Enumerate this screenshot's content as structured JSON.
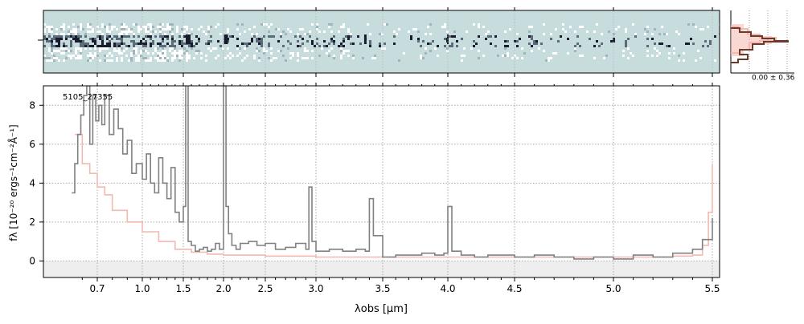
{
  "chart_data": [
    {
      "type": "heatmap",
      "id": "spectrum-2d",
      "description_of_content": "2D spectrum",
      "colormap": [
        "#c7dcdc",
        "#ffffff",
        "#1a1a2e"
      ]
    },
    {
      "type": "line",
      "id": "profile-inset",
      "annotation": "0.00 ± 0.36",
      "colors": {
        "profile": "#6b3a2a",
        "model": "#f4b8b0"
      }
    },
    {
      "type": "line",
      "id": "spectrum-1d",
      "label": "5105_27355",
      "xlabel": "λobs [μm]",
      "ylabel": "fλ [10⁻²⁰ ergs⁻¹cm⁻²Å⁻¹]",
      "ylim": [
        -0.85,
        9.0
      ],
      "yticks": [
        0,
        2,
        4,
        6,
        8
      ],
      "xticks": [
        {
          "label": "0.7",
          "value": 0.7
        },
        {
          "label": "1.0",
          "value": 1.0
        },
        {
          "label": "1.5",
          "value": 1.5
        },
        {
          "label": "2.0",
          "value": 2.0
        },
        {
          "label": "2.5",
          "value": 2.5
        },
        {
          "label": "3.0",
          "value": 3.0
        },
        {
          "label": "3.5",
          "value": 3.5
        },
        {
          "label": "4.0",
          "value": 4.0
        },
        {
          "label": "4.5",
          "value": 4.5
        },
        {
          "label": "5.0",
          "value": 5.0
        },
        {
          "label": "5.5",
          "value": 5.5
        }
      ],
      "grid": true,
      "colors": {
        "data": "#808080",
        "error": "#f4b8b0",
        "zero_band": "#eeeeee"
      },
      "series": [
        {
          "role": "data",
          "x": [
            0.53,
            0.55,
            0.57,
            0.59,
            0.61,
            0.63,
            0.65,
            0.67,
            0.69,
            0.71,
            0.73,
            0.75,
            0.78,
            0.81,
            0.84,
            0.87,
            0.9,
            0.93,
            0.96,
            1.0,
            1.05,
            1.1,
            1.15,
            1.2,
            1.25,
            1.3,
            1.35,
            1.4,
            1.45,
            1.5,
            1.53,
            1.56,
            1.6,
            1.65,
            1.7,
            1.75,
            1.8,
            1.85,
            1.9,
            1.95,
            2.0,
            2.03,
            2.06,
            2.1,
            2.15,
            2.2,
            2.3,
            2.4,
            2.5,
            2.6,
            2.7,
            2.8,
            2.9,
            2.93,
            2.96,
            3.0,
            3.1,
            3.2,
            3.3,
            3.37,
            3.4,
            3.43,
            3.5,
            3.6,
            3.7,
            3.8,
            3.9,
            3.97,
            4.0,
            4.03,
            4.1,
            4.2,
            4.3,
            4.4,
            4.5,
            4.6,
            4.7,
            4.8,
            4.9,
            5.0,
            5.1,
            5.2,
            5.3,
            5.4,
            5.45,
            5.5
          ],
          "y": [
            3.5,
            5.0,
            6.5,
            7.5,
            8.5,
            9.0,
            6.0,
            8.5,
            7.2,
            8.0,
            7.0,
            8.5,
            6.5,
            7.8,
            6.8,
            5.5,
            6.2,
            4.5,
            5.0,
            4.2,
            5.5,
            4.0,
            3.5,
            5.3,
            4.0,
            3.2,
            4.8,
            2.5,
            2.0,
            2.8,
            9.5,
            1.0,
            0.8,
            0.5,
            0.6,
            0.7,
            0.5,
            0.6,
            0.9,
            0.6,
            9.0,
            2.8,
            1.4,
            0.8,
            0.6,
            0.9,
            1.0,
            0.8,
            0.9,
            0.6,
            0.7,
            0.9,
            0.6,
            3.8,
            1.0,
            0.5,
            0.6,
            0.5,
            0.6,
            0.5,
            3.2,
            1.3,
            0.2,
            0.3,
            0.3,
            0.4,
            0.3,
            0.4,
            2.8,
            0.5,
            0.3,
            0.2,
            0.3,
            0.3,
            0.2,
            0.3,
            0.2,
            0.1,
            0.2,
            0.1,
            0.3,
            0.2,
            0.4,
            0.6,
            1.1,
            2.2
          ]
        },
        {
          "role": "error",
          "x": [
            0.55,
            0.6,
            0.65,
            0.7,
            0.75,
            0.8,
            0.9,
            1.0,
            1.2,
            1.4,
            1.6,
            1.8,
            2.0,
            2.5,
            3.0,
            3.5,
            4.0,
            4.5,
            5.0,
            5.3,
            5.4,
            5.45,
            5.48,
            5.5
          ],
          "y": [
            6.5,
            5.0,
            4.5,
            3.8,
            3.4,
            2.6,
            2.0,
            1.5,
            1.0,
            0.6,
            0.45,
            0.35,
            0.3,
            0.25,
            0.2,
            0.2,
            0.2,
            0.2,
            0.2,
            0.25,
            0.3,
            0.8,
            2.5,
            5.0
          ]
        }
      ]
    }
  ]
}
